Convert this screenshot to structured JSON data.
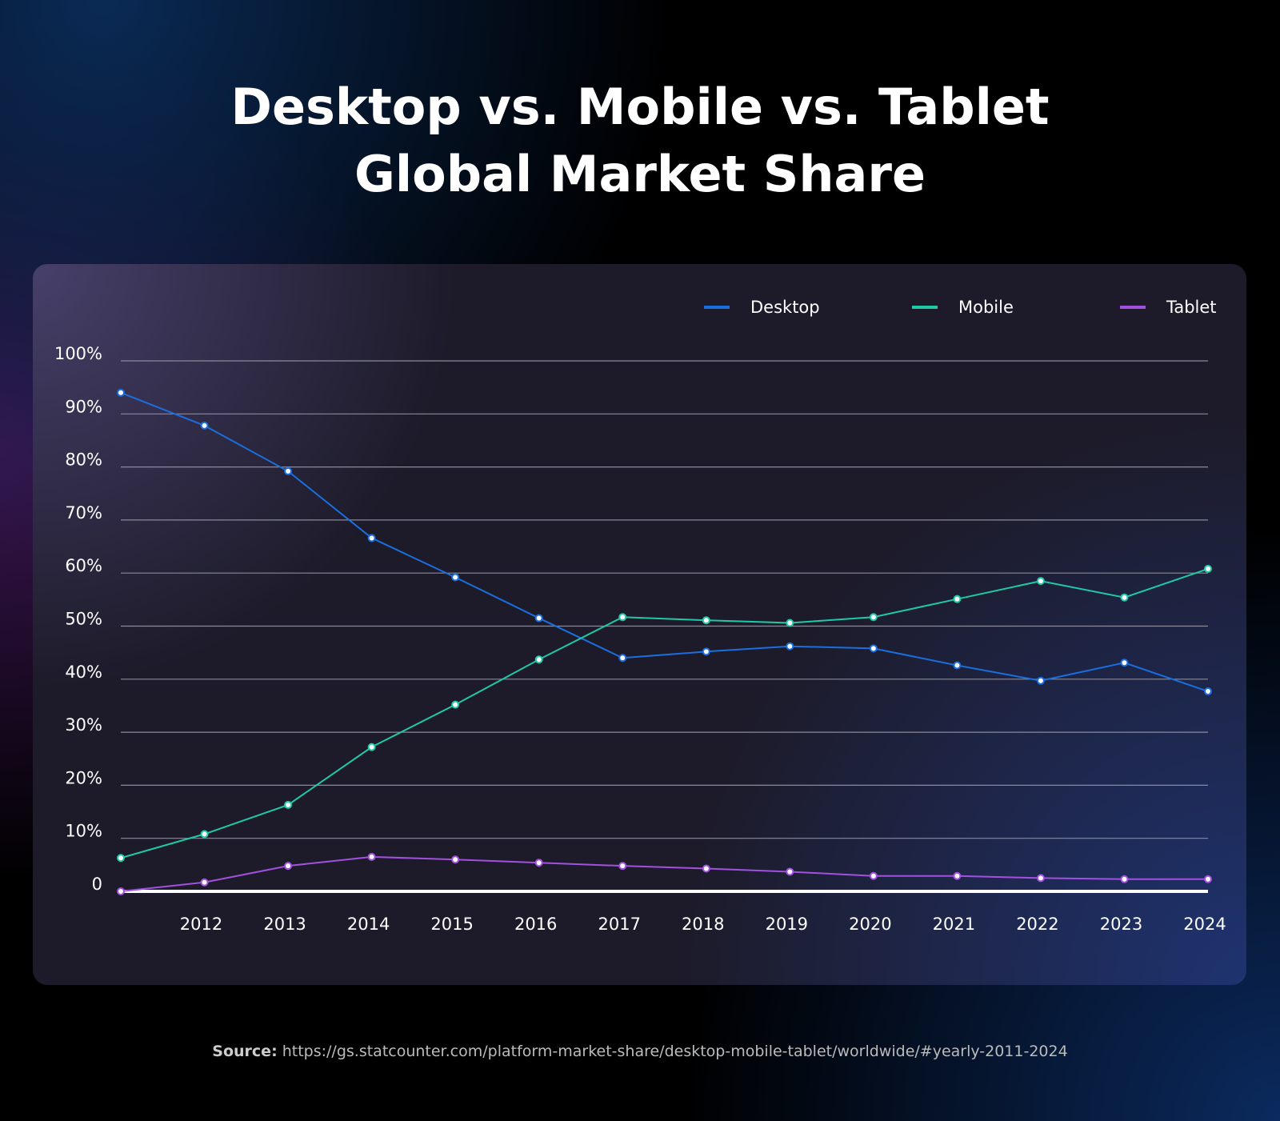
{
  "chart_data": {
    "type": "line",
    "title": "Desktop vs. Mobile vs. Tablet Global Market Share",
    "source_label": "Source:",
    "source_url": "https://gs.statcounter.com/platform-market-share/desktop-mobile-tablet/worldwide/#yearly-2011-2024",
    "categories": [
      null,
      "2012",
      "2013",
      "2014",
      "2015",
      "2016",
      "2017",
      "2018",
      "2019",
      "2020",
      "2021",
      "2022",
      "2023",
      "2024"
    ],
    "series": [
      {
        "name": "Desktop",
        "color": "#1a6fe0",
        "values": [
          94.0,
          87.8,
          79.2,
          66.6,
          59.2,
          51.5,
          44.0,
          45.2,
          46.2,
          45.8,
          42.6,
          39.7,
          43.1,
          37.7
        ]
      },
      {
        "name": "Mobile",
        "color": "#1fc9a8",
        "values": [
          6.3,
          10.8,
          16.3,
          27.2,
          35.2,
          43.7,
          51.7,
          51.1,
          50.6,
          51.7,
          55.1,
          58.5,
          55.4,
          60.8
        ]
      },
      {
        "name": "Tablet",
        "color": "#a34fe0",
        "values": [
          0,
          1.7,
          4.8,
          6.5,
          6.0,
          5.4,
          4.8,
          4.3,
          3.7,
          2.9,
          2.9,
          2.5,
          2.3,
          2.3
        ]
      }
    ],
    "ylim": [
      0,
      100
    ],
    "yticks": [
      0,
      {
        "value": 10,
        "label": "10%"
      },
      {
        "value": 20,
        "label": "20%"
      },
      {
        "value": 30,
        "label": "30%"
      },
      {
        "value": 40,
        "label": "40%"
      },
      {
        "value": 50,
        "label": "50%"
      },
      {
        "value": 60,
        "label": "60%"
      },
      {
        "value": 70,
        "label": "70%"
      },
      {
        "value": 80,
        "label": "80%"
      },
      {
        "value": 90,
        "label": "90%"
      },
      {
        "value": 100,
        "label": "100%"
      }
    ],
    "grid": true,
    "legend_position": "top-right"
  }
}
